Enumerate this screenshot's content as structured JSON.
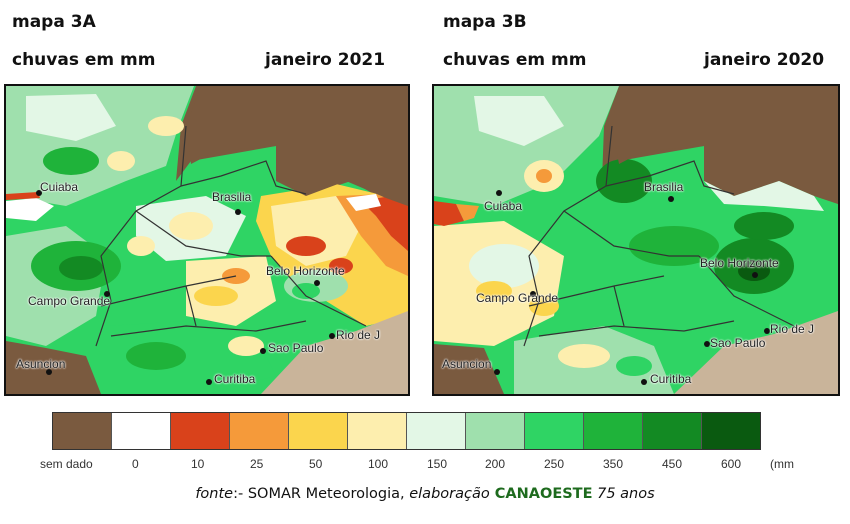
{
  "maps": [
    {
      "title": "mapa 3A",
      "subtitle": "chuvas em mm",
      "period": "janeiro 2021",
      "cities": [
        "Cuiaba",
        "Brasilia",
        "Belo Horizonte",
        "Campo Grande",
        "Rio de J",
        "Sao Paulo",
        "Asuncion",
        "Curitiba"
      ]
    },
    {
      "title": "mapa 3B",
      "subtitle": "chuvas em mm",
      "period": "janeiro 2020",
      "cities": [
        "Cuiaba",
        "Brasilia",
        "Belo Horizonte",
        "Campo Grande",
        "Rio de J",
        "Sao Paulo",
        "Asuncion",
        "Curitiba"
      ]
    }
  ],
  "legend": {
    "colors": [
      "#7a5a3f",
      "#ffffff",
      "#d9421b",
      "#f59a3a",
      "#fbd54d",
      "#fdeeae",
      "#e3f7e6",
      "#9fe0ad",
      "#2fd464",
      "#1fb33a",
      "#138a23",
      "#0a5a10"
    ],
    "labels": [
      "sem dado",
      "0",
      "10",
      "25",
      "50",
      "100",
      "150",
      "200",
      "250",
      "350",
      "450",
      "600",
      "(mm"
    ]
  },
  "source": {
    "prefix": "fonte",
    "sep": ":-",
    "org": " SOMAR Meteorologia, ",
    "elab": "elaboração",
    "brand": " CANAOESTE",
    "suffix": " 75 anos"
  }
}
